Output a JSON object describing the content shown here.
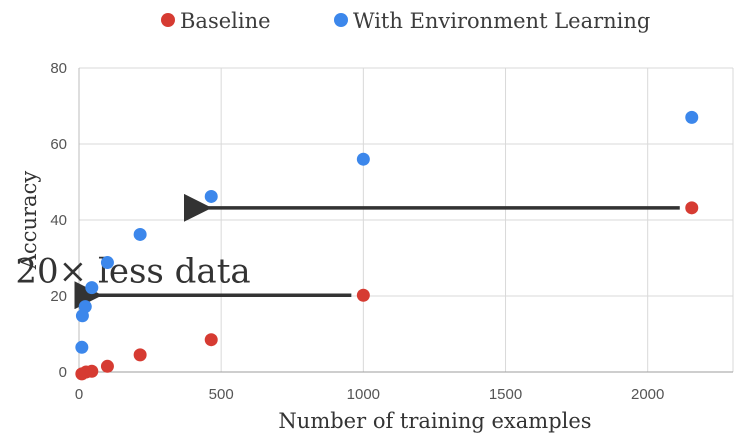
{
  "chart_data": {
    "type": "scatter",
    "xlabel": "Number of training examples",
    "ylabel": "Accuracy",
    "xlim": [
      0,
      2300
    ],
    "ylim": [
      0,
      80
    ],
    "x_ticks": [
      0,
      500,
      1000,
      1500,
      2000
    ],
    "y_ticks": [
      0,
      20,
      40,
      60,
      80
    ],
    "grid": true,
    "legend_position": "top",
    "series": [
      {
        "name": "Baseline",
        "color": "#d63b32",
        "points": [
          [
            10,
            -0.5
          ],
          [
            25,
            0
          ],
          [
            45,
            0.2
          ],
          [
            100,
            1.5
          ],
          [
            215,
            4.5
          ],
          [
            465,
            8.5
          ],
          [
            1000,
            20.2
          ],
          [
            2155,
            43.2
          ]
        ]
      },
      {
        "name": "With Environment Learning",
        "color": "#3c87eb",
        "points": [
          [
            10,
            6.5
          ],
          [
            12,
            14.8
          ],
          [
            22,
            17.2
          ],
          [
            45,
            22.2
          ],
          [
            100,
            28.8
          ],
          [
            215,
            36.2
          ],
          [
            465,
            46.2
          ],
          [
            1000,
            56
          ],
          [
            2155,
            67
          ]
        ]
      }
    ],
    "annotations": [
      {
        "type": "arrow",
        "from": [
          2155,
          43.2
        ],
        "to": [
          420,
          43.2
        ],
        "color": "#333333"
      },
      {
        "type": "arrow",
        "from": [
          1000,
          20.2
        ],
        "to": [
          35,
          20.2
        ],
        "color": "#333333"
      },
      {
        "type": "text",
        "text": "20× less data",
        "x": 190,
        "y": 23.6
      }
    ]
  }
}
